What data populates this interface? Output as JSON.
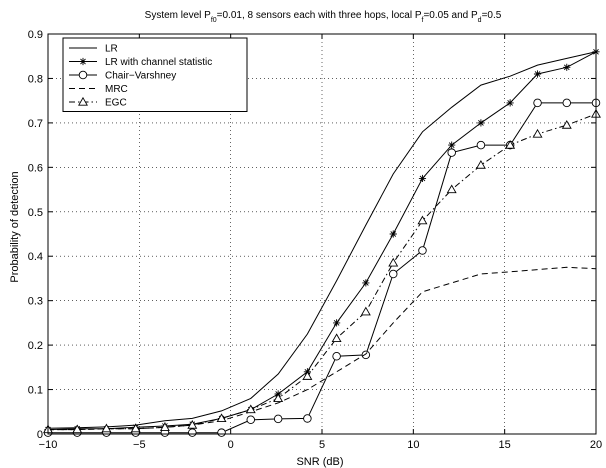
{
  "chart_data": {
    "type": "line",
    "title_parts": [
      "System level P",
      "f0",
      "=0.01, 8 sensors each with three hops, local P",
      "f",
      "=0.05 and P",
      "d",
      "=0.5"
    ],
    "xlabel": "SNR (dB)",
    "ylabel": "Probability of detection",
    "xlim": [
      -10,
      20
    ],
    "ylim": [
      0,
      0.9
    ],
    "xticks": [
      -10,
      -5,
      0,
      5,
      10,
      15,
      20
    ],
    "yticks": [
      0,
      0.1,
      0.2,
      0.3,
      0.4,
      0.5,
      0.6,
      0.7,
      0.8,
      0.9
    ],
    "xtick_labels": [
      "−10",
      "−5",
      "0",
      "5",
      "10",
      "15",
      "20"
    ],
    "ytick_labels": [
      "0",
      "0.1",
      "0.2",
      "0.3",
      "0.4",
      "0.5",
      "0.6",
      "0.7",
      "0.8",
      "0.9"
    ],
    "grid": "dotted",
    "legend_position": "top-left",
    "series": [
      {
        "name": "LR",
        "style": "solid",
        "marker": "none",
        "x": [
          -10,
          -8.4,
          -6.8,
          -5.2,
          -3.6,
          -2.1,
          -0.5,
          1.1,
          2.6,
          4.2,
          5.8,
          7.4,
          8.9,
          10.5,
          12.1,
          13.7,
          15.3,
          16.8,
          18.4,
          20
        ],
        "y": [
          0.013,
          0.014,
          0.016,
          0.02,
          0.03,
          0.035,
          0.052,
          0.08,
          0.135,
          0.225,
          0.345,
          0.47,
          0.585,
          0.68,
          0.735,
          0.785,
          0.805,
          0.83,
          0.845,
          0.86
        ]
      },
      {
        "name": "LR with channel statistic",
        "style": "solid",
        "marker": "star",
        "x": [
          -10,
          -8.4,
          -6.8,
          -5.2,
          -3.6,
          -2.1,
          -0.5,
          1.1,
          2.6,
          4.2,
          5.8,
          7.4,
          8.9,
          10.5,
          12.1,
          13.7,
          15.3,
          16.8,
          18.4,
          20
        ],
        "y": [
          0.01,
          0.012,
          0.012,
          0.015,
          0.018,
          0.022,
          0.035,
          0.055,
          0.09,
          0.14,
          0.25,
          0.34,
          0.45,
          0.575,
          0.65,
          0.7,
          0.745,
          0.81,
          0.825,
          0.86
        ]
      },
      {
        "name": "Chair−Varshney",
        "style": "solid",
        "marker": "circle",
        "x": [
          -10,
          -8.4,
          -6.8,
          -5.2,
          -3.6,
          -2.1,
          -0.5,
          1.1,
          2.6,
          4.2,
          5.8,
          7.4,
          8.9,
          10.5,
          12.1,
          13.7,
          15.3,
          16.8,
          18.4,
          20
        ],
        "y": [
          0.003,
          0.003,
          0.003,
          0.003,
          0.003,
          0.003,
          0.003,
          0.032,
          0.034,
          0.035,
          0.175,
          0.178,
          0.36,
          0.413,
          0.633,
          0.65,
          0.65,
          0.745,
          0.745,
          0.745
        ]
      },
      {
        "name": "MRC",
        "style": "dashed",
        "marker": "none",
        "x": [
          -10,
          -8.4,
          -6.8,
          -5.2,
          -3.6,
          -2.1,
          -0.5,
          1.1,
          2.6,
          4.2,
          5.8,
          7.4,
          8.9,
          10.5,
          12.1,
          13.7,
          15.3,
          16.8,
          18.4,
          20
        ],
        "y": [
          0.01,
          0.01,
          0.012,
          0.012,
          0.015,
          0.02,
          0.03,
          0.05,
          0.07,
          0.1,
          0.14,
          0.18,
          0.25,
          0.32,
          0.34,
          0.36,
          0.365,
          0.37,
          0.375,
          0.372
        ]
      },
      {
        "name": "EGC",
        "style": "dashdot",
        "marker": "triangle",
        "x": [
          -10,
          -8.4,
          -6.8,
          -5.2,
          -3.6,
          -2.1,
          -0.5,
          1.1,
          2.6,
          4.2,
          5.8,
          7.4,
          8.9,
          10.5,
          12.1,
          13.7,
          15.3,
          16.8,
          18.4,
          20
        ],
        "y": [
          0.01,
          0.01,
          0.012,
          0.012,
          0.015,
          0.02,
          0.035,
          0.055,
          0.08,
          0.13,
          0.215,
          0.275,
          0.385,
          0.48,
          0.55,
          0.605,
          0.65,
          0.675,
          0.695,
          0.72
        ]
      }
    ]
  }
}
